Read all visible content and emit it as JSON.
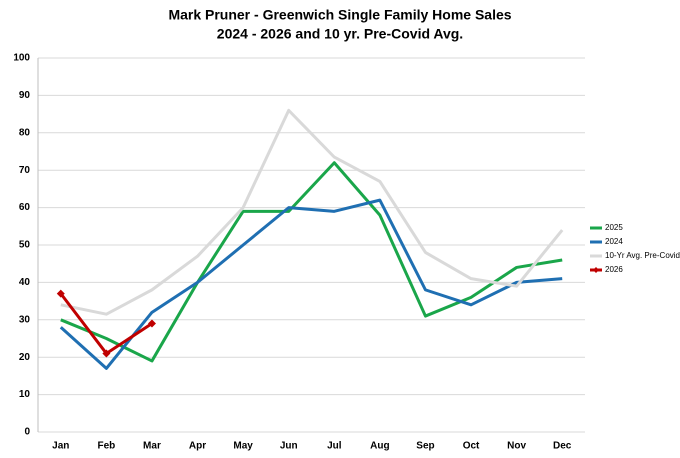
{
  "chart_data": {
    "type": "line",
    "title": "Mark Pruner - Greenwich Single Family Home Sales",
    "subtitle": "2024 - 2026 and 10 yr. Pre-Covid Avg.",
    "categories": [
      "Jan",
      "Feb",
      "Mar",
      "Apr",
      "May",
      "Jun",
      "Jul",
      "Aug",
      "Sep",
      "Oct",
      "Nov",
      "Dec"
    ],
    "series": [
      {
        "name": "2025",
        "color": "#1aa64a",
        "values": [
          30,
          25,
          19,
          40,
          59,
          59,
          72,
          58,
          31,
          36,
          44,
          46
        ]
      },
      {
        "name": "2024",
        "color": "#1f6fb2",
        "values": [
          28,
          17,
          32,
          40,
          50,
          60,
          59,
          62,
          38,
          34,
          40,
          41
        ]
      },
      {
        "name": "10-Yr Avg. Pre-Covid",
        "color": "#d9d9d9",
        "values": [
          34,
          31.5,
          38,
          47,
          60,
          86,
          73.5,
          67,
          48,
          41,
          39,
          54
        ]
      },
      {
        "name": "2026",
        "color": "#c00000",
        "marker": "diamond",
        "values": [
          37,
          21,
          29,
          null,
          null,
          null,
          null,
          null,
          null,
          null,
          null,
          null
        ]
      }
    ],
    "ylim": [
      0,
      100
    ],
    "yticks": [
      0,
      10,
      20,
      30,
      40,
      50,
      60,
      70,
      80,
      90,
      100
    ],
    "grid": true
  }
}
